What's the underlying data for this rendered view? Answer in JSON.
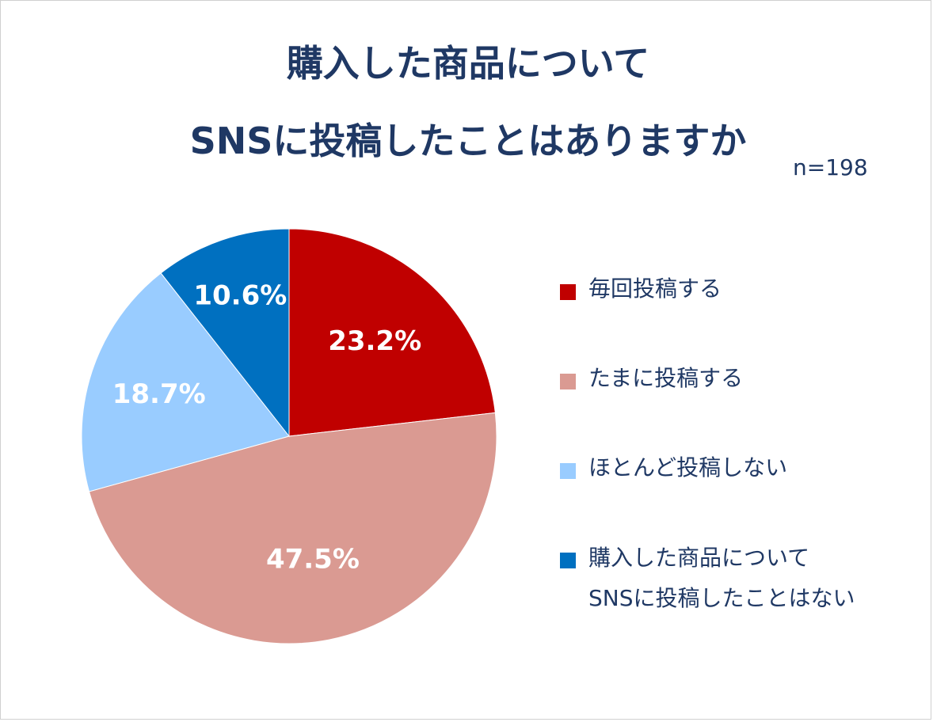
{
  "chart_data": {
    "type": "pie",
    "title_line1": "購入した商品について",
    "title_line2": "SNSに投稿したことはありますか",
    "note": "n=198",
    "legend_position": "right",
    "slices": [
      {
        "label": "毎回投稿する",
        "value": 23.2,
        "value_label": "23.2%",
        "color": "#c00000"
      },
      {
        "label": "たまに投稿する",
        "value": 47.5,
        "value_label": "47.5%",
        "color": "#da9a92"
      },
      {
        "label": "ほとんど投稿しない",
        "value": 18.7,
        "value_label": "18.7%",
        "color": "#99ccff"
      },
      {
        "label_line1": "購入した商品について",
        "label_line2": "SNSに投稿したことはない",
        "value": 10.6,
        "value_label": "10.6%",
        "color": "#0070c0"
      }
    ]
  }
}
